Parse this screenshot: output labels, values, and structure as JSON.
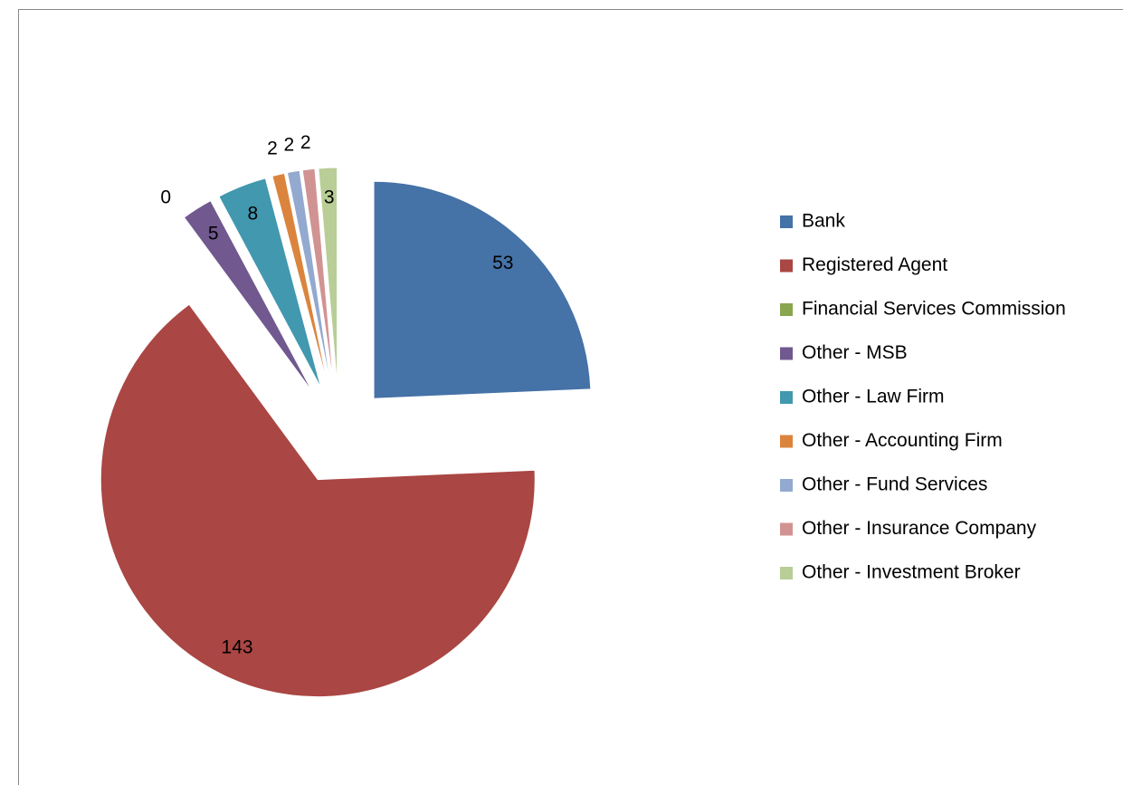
{
  "chart_data": {
    "type": "pie",
    "categories": [
      "Bank",
      "Registered Agent",
      "Financial Services Commission",
      "Other - MSB",
      "Other - Law Firm",
      "Other - Accounting Firm",
      "Other - Fund Services",
      "Other - Insurance Company",
      "Other - Investment Broker"
    ],
    "values": [
      53,
      143,
      0,
      5,
      8,
      2,
      2,
      2,
      3
    ],
    "colors": [
      "#4572a7",
      "#aa4643",
      "#89a54e",
      "#71588f",
      "#4198af",
      "#db843d",
      "#93a9cf",
      "#d19392",
      "#b9cd96"
    ],
    "legend": "right"
  }
}
